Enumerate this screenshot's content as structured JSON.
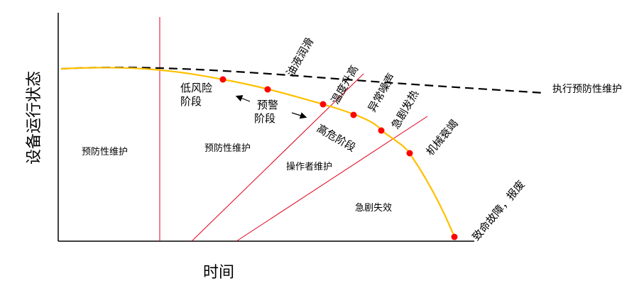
{
  "axes": {
    "y_label": "设备运行状态",
    "x_label": "时间"
  },
  "curve_labels": {
    "dashed_line": "执行预防性维护"
  },
  "regions": {
    "region1": "预防性维护",
    "region2": "预防性维护",
    "region3": "操作者维护",
    "region4": "急剧失效"
  },
  "stages": {
    "low_risk_line1": "低风险",
    "low_risk_line2": "阶段",
    "warning_line1": "预警",
    "warning_line2": "阶段",
    "high_risk": "高危阶段"
  },
  "events": {
    "e1": "油液润滑",
    "e2": "温度升高",
    "e3": "异常噪声",
    "e4": "急剧发热",
    "e5": "机械衰竭",
    "e6": "致命故障，报废"
  },
  "colors": {
    "curve": "#FFC000",
    "points": "#FF0000",
    "divider": "#E0001B"
  }
}
